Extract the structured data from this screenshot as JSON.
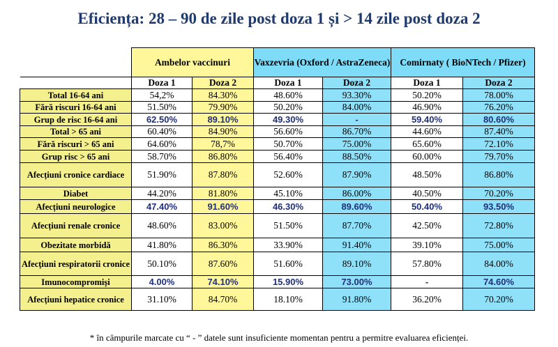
{
  "title": "Eficiența: 28 – 90 de zile post doza 1 și > 14 zile post doza 2",
  "groups": [
    {
      "name": "Ambelor vaccinuri"
    },
    {
      "name": "Vaxzevria (Oxford / AstraZeneca)"
    },
    {
      "name": "Comirnaty ( BioNTech / Pfizer)"
    }
  ],
  "dose_labels": [
    "Doza 1",
    "Doza 2",
    "Doza 1",
    "Doza 2",
    "Doza 1",
    "Doza 2"
  ],
  "rows": [
    {
      "label": "Total 16-64 ani",
      "values": [
        "54,2%",
        "84.30%",
        "48.60%",
        "93.30%",
        "50.20%",
        "78.00%"
      ]
    },
    {
      "label": "Fără riscuri 16-64 ani",
      "values": [
        "51.50%",
        "79.90%",
        "50.20%",
        "84.00%",
        "46.90%",
        "76.20%"
      ]
    },
    {
      "label": "Grup de risc 16-64 ani",
      "values": [
        "62.50%",
        "89.10%",
        "49.30%",
        "-",
        "59.40%",
        "80.60%"
      ]
    },
    {
      "label": "Total > 65 ani",
      "values": [
        "60.40%",
        "84.90%",
        "56.60%",
        "86.70%",
        "44.60%",
        "87.40%"
      ]
    },
    {
      "label": "Fără riscuri > 65 ani",
      "values": [
        "64.60%",
        "78,7%",
        "50.70%",
        "75.00%",
        "65.60%",
        "72.10%"
      ]
    },
    {
      "label": "Grup risc > 65 ani",
      "values": [
        "58.70%",
        "86.80%",
        "56.40%",
        "88.50%",
        "60.00%",
        "79.70%"
      ]
    },
    {
      "label": "Afecțiuni cronice cardiace",
      "values": [
        "51.90%",
        "87.80%",
        "52.60%",
        "87.90%",
        "48.50%",
        "86.80%"
      ]
    },
    {
      "label": "Diabet",
      "values": [
        "44.20%",
        "81.80%",
        "45.10%",
        "86.00%",
        "40.50%",
        "70.20%"
      ]
    },
    {
      "label": "Afecțiuni neurologice",
      "values": [
        "47.40%",
        "91.60%",
        "46.30%",
        "89.60%",
        "50.40%",
        "93.50%"
      ]
    },
    {
      "label": "Afecțiuni renale cronice",
      "values": [
        "48.60%",
        "83.00%",
        "51.50%",
        "87.70%",
        "42.50%",
        "72.80%"
      ]
    },
    {
      "label": "Obezitate morbidă",
      "values": [
        "41.80%",
        "86.30%",
        "33.90%",
        "91.40%",
        "39.10%",
        "75.00%"
      ]
    },
    {
      "label": "Afecțiuni respiratorii cronice",
      "values": [
        "50.10%",
        "87.60%",
        "51.60%",
        "89.10%",
        "57.80%",
        "84.00%"
      ]
    },
    {
      "label": "Imunocompromiși",
      "values": [
        "4.00%",
        "74.10%",
        "15.90%",
        "73.00%",
        "-",
        "74.60%"
      ]
    },
    {
      "label": "Afecțiuni hepatice cronice",
      "values": [
        "31.10%",
        "84.70%",
        "18.10%",
        "91.80%",
        "36.20%",
        "70.20%"
      ]
    }
  ],
  "note": "* în câmpurile marcate cu “ - ” datele sunt insuficiente momentan pentru a permitre evaluarea eficienței."
}
